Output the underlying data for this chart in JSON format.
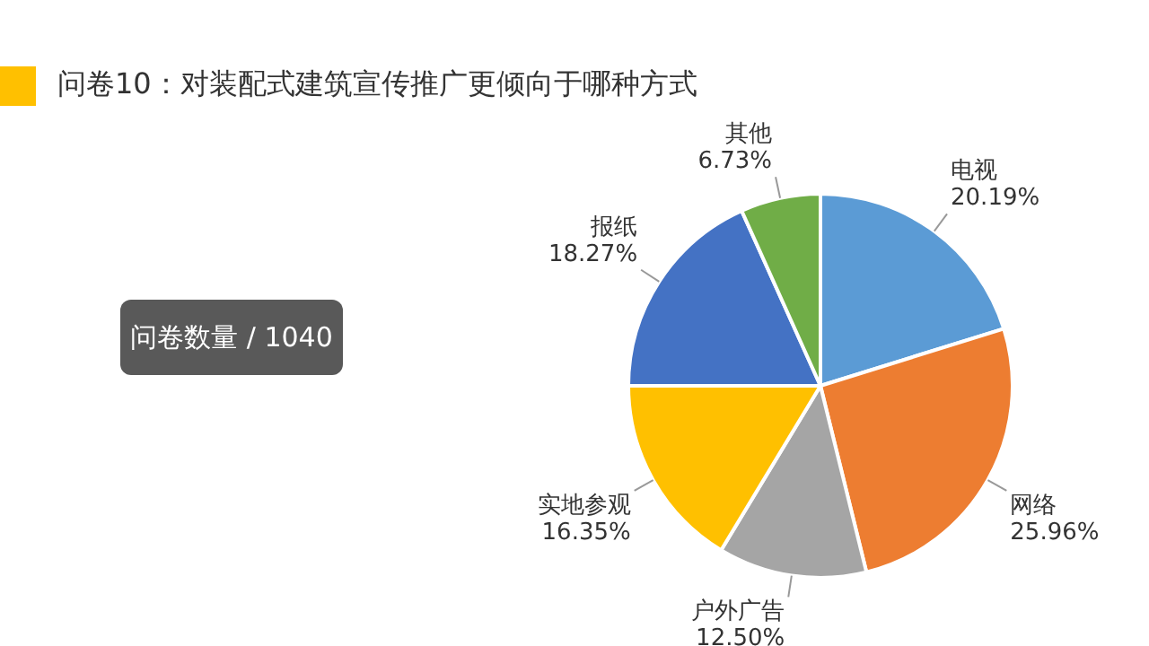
{
  "chart_data": {
    "type": "pie",
    "title": "问卷10：对装配式建筑宣传推广更倾向于哪种方式",
    "categories": [
      "电视",
      "网络",
      "户外广告",
      "实地参观",
      "报纸",
      "其他"
    ],
    "values": [
      20.19,
      25.96,
      12.5,
      16.35,
      18.27,
      6.73
    ],
    "value_labels": [
      "20.19%",
      "25.96%",
      "12.50%",
      "16.35%",
      "18.27%",
      "6.73%"
    ],
    "colors": [
      "#5b9bd5",
      "#ed7d31",
      "#a5a5a5",
      "#ffc000",
      "#4472c4",
      "#70ad47"
    ],
    "annotations": [
      "问卷数量 / 1040"
    ],
    "legend": false
  }
}
